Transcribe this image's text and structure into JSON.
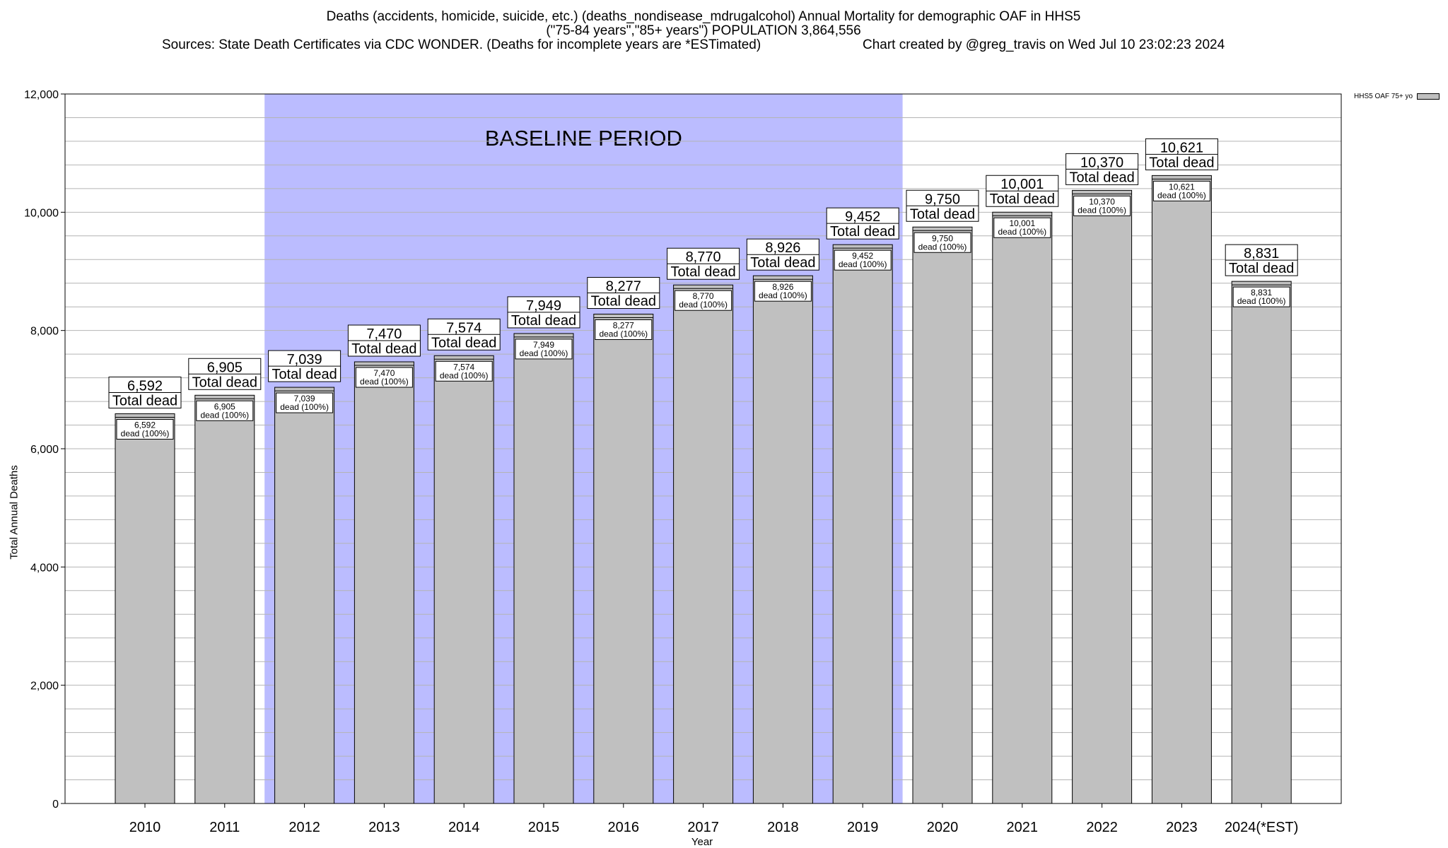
{
  "title": {
    "line1": "Deaths (accidents, homicide, suicide, etc.) (deaths_nondisease_mdrugalcohol) Annual Mortality for demographic OAF in HHS5",
    "line2": "(\"75-84 years\",\"85+ years\") POPULATION 3,864,556",
    "line3_left": "Sources: State Death Certificates via CDC WONDER. (Deaths for incomplete years are *ESTimated)",
    "line3_right": "Chart created by @greg_travis on Wed Jul 10 23:02:23 2024"
  },
  "legend": {
    "label": "HHS5 OAF 75+ yo"
  },
  "colors": {
    "bar": "#c0c0c0",
    "baseline": "#bbbcff",
    "grid": "#b4b4b4"
  },
  "chart_data": {
    "type": "bar",
    "categories": [
      "2010",
      "2011",
      "2012",
      "2013",
      "2014",
      "2015",
      "2016",
      "2017",
      "2018",
      "2019",
      "2020",
      "2021",
      "2022",
      "2023",
      "2024(*EST)"
    ],
    "series": [
      {
        "name": "HHS5 OAF 75+ yo",
        "values": [
          6592,
          6905,
          7039,
          7470,
          7574,
          7949,
          8277,
          8770,
          8926,
          9452,
          9750,
          10001,
          10370,
          10621,
          8831
        ]
      }
    ],
    "value_labels": [
      "6,592",
      "6,905",
      "7,039",
      "7,470",
      "7,574",
      "7,949",
      "8,277",
      "8,770",
      "8,926",
      "9,452",
      "9,750",
      "10,001",
      "10,370",
      "10,621",
      "8,831"
    ],
    "total_suffix": "Total dead",
    "inner_suffix": "dead (100%)",
    "xlabel": "Year",
    "ylabel": "Total Annual Deaths",
    "ylim": [
      0,
      12000
    ],
    "yticks": [
      0,
      2000,
      4000,
      6000,
      8000,
      10000,
      12000
    ],
    "ytick_labels": [
      "0",
      "2,000",
      "4,000",
      "6,000",
      "8,000",
      "10,000",
      "12,000"
    ],
    "grid": true,
    "legend_position": "top-right",
    "baseline_period": {
      "label": "BASELINE PERIOD",
      "start": "2012",
      "end": "2019"
    }
  }
}
